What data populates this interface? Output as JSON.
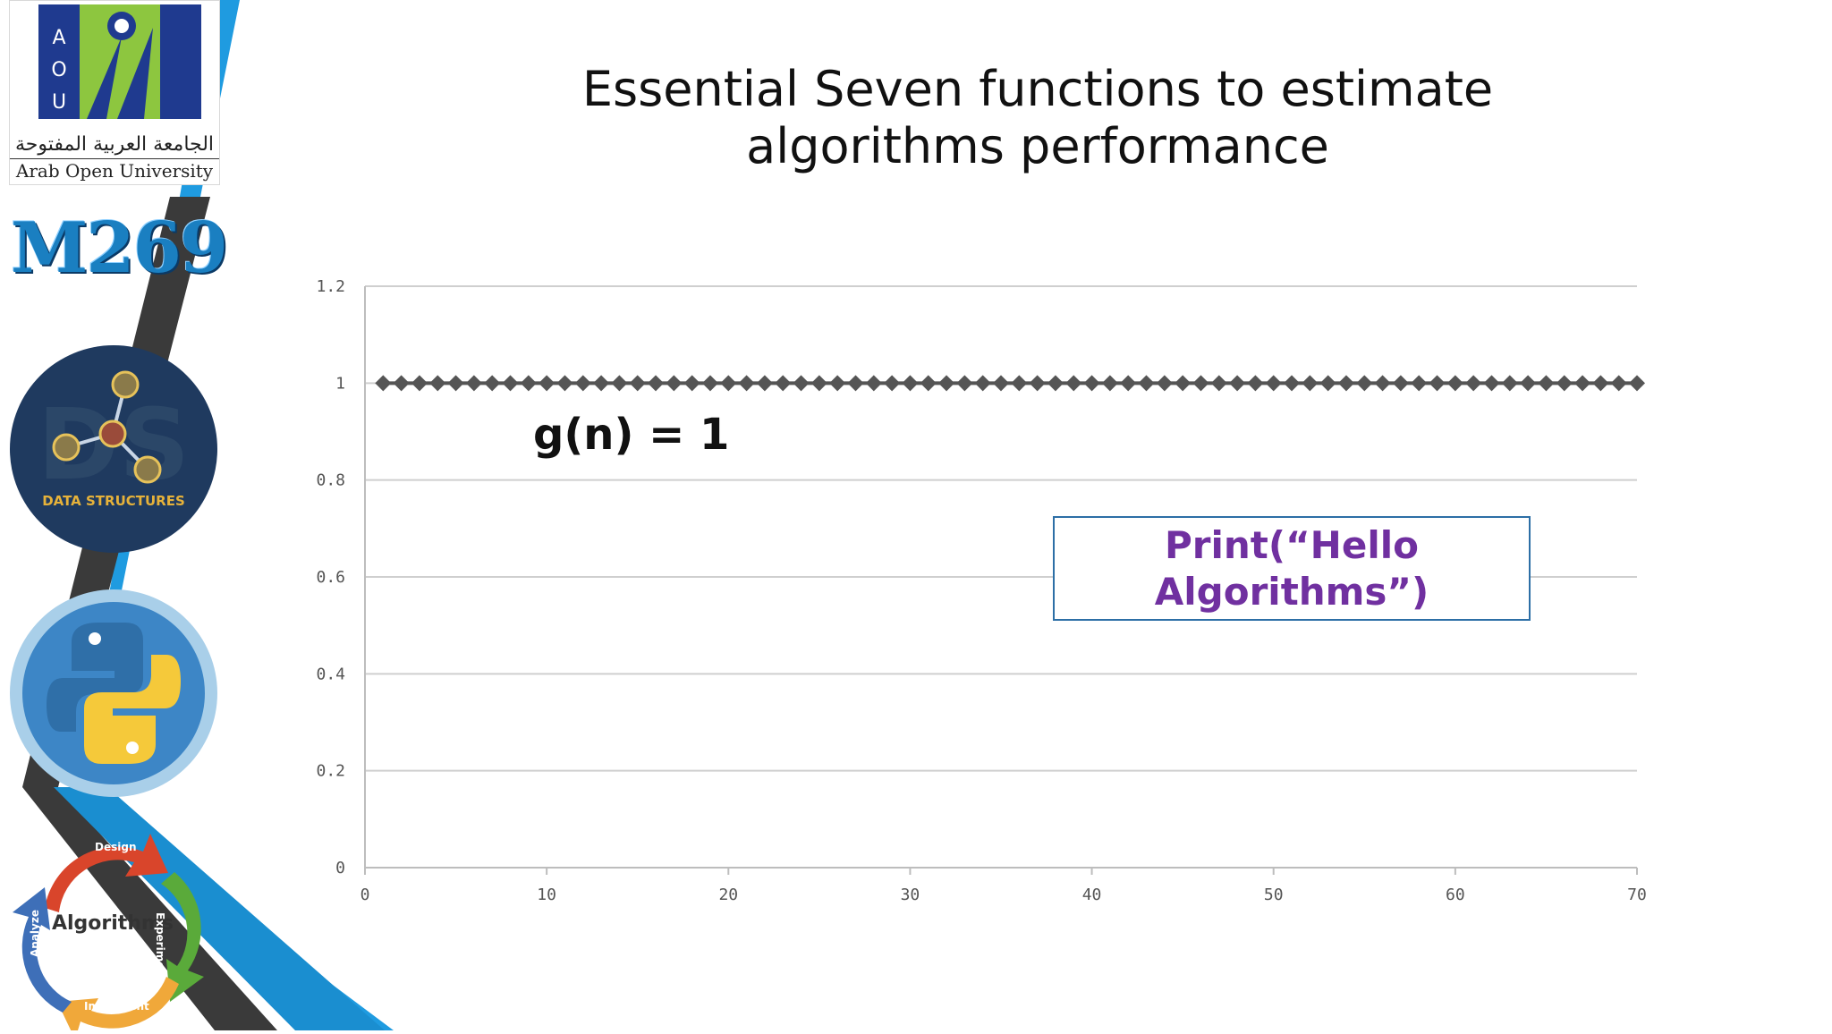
{
  "slide": {
    "title": "Essential Seven functions to estimate algorithms performance",
    "annotation": "g(n) = 1",
    "callout": "Print(“Hello Algorithms”)"
  },
  "sidebar": {
    "logo_letters": [
      "A",
      "O",
      "U"
    ],
    "logo_arabic": "الجامعة العربية المفتوحة",
    "logo_english": "Arab Open University",
    "course_code": "M269",
    "badge_data_structures": "DATA STRUCTURES",
    "badge_algorithms": "Algorithms",
    "cycle_words": {
      "design": "Design",
      "experiment": "Experiment",
      "implement": "Implement",
      "analyze": "Analyze"
    },
    "colors": {
      "blue_stripe": "#1f9be0",
      "dark_stripe": "#3a3a3a",
      "navy": "#1f3a5f",
      "logo_green": "#8dc63f"
    }
  },
  "chart_data": {
    "type": "scatter",
    "title": "",
    "xlabel": "",
    "ylabel": "",
    "xlim": [
      0,
      70
    ],
    "ylim": [
      0,
      1.2
    ],
    "xticks": [
      "0",
      "10",
      "20",
      "30",
      "40",
      "50",
      "60",
      "70"
    ],
    "yticks": [
      "0",
      "0.2",
      "0.4",
      "0.6",
      "0.8",
      "1",
      "1.2"
    ],
    "grid": "horizontal",
    "series": [
      {
        "marker": "diamond",
        "color": "#555555",
        "x": [
          1,
          2,
          3,
          4,
          5,
          6,
          7,
          8,
          9,
          10,
          11,
          12,
          13,
          14,
          15,
          16,
          17,
          18,
          19,
          20,
          21,
          22,
          23,
          24,
          25,
          26,
          27,
          28,
          29,
          30,
          31,
          32,
          33,
          34,
          35,
          36,
          37,
          38,
          39,
          40,
          41,
          42,
          43,
          44,
          45,
          46,
          47,
          48,
          49,
          50,
          51,
          52,
          53,
          54,
          55,
          56,
          57,
          58,
          59,
          60,
          61,
          62,
          63,
          64,
          65,
          66,
          67,
          68,
          69,
          70
        ],
        "y": [
          1,
          1,
          1,
          1,
          1,
          1,
          1,
          1,
          1,
          1,
          1,
          1,
          1,
          1,
          1,
          1,
          1,
          1,
          1,
          1,
          1,
          1,
          1,
          1,
          1,
          1,
          1,
          1,
          1,
          1,
          1,
          1,
          1,
          1,
          1,
          1,
          1,
          1,
          1,
          1,
          1,
          1,
          1,
          1,
          1,
          1,
          1,
          1,
          1,
          1,
          1,
          1,
          1,
          1,
          1,
          1,
          1,
          1,
          1,
          1,
          1,
          1,
          1,
          1,
          1,
          1,
          1,
          1,
          1,
          1
        ]
      }
    ]
  }
}
